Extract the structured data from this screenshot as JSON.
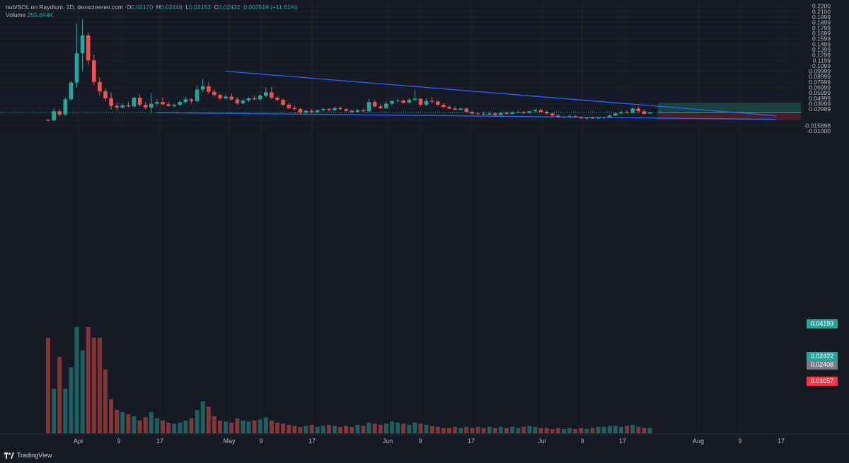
{
  "header": {
    "symbol": "nub/SOL on Raydium, 1D, dexscreener.com",
    "o_label": "O",
    "o": "0.02170",
    "h_label": "H",
    "h": "0.02446",
    "l_label": "L",
    "l": "0.02153",
    "c_label": "C",
    "c": "0.02422",
    "change": "0.002519 (+11.61%)",
    "volume_label": "Volume",
    "volume": "255.844K"
  },
  "price_axis_labels": [
    "0.2200",
    "0.2100",
    "0.1999",
    "0.1899",
    "0.1799",
    "0.1699",
    "0.1599",
    "0.1499",
    "0.1399",
    "0.1299",
    "0.1199",
    "0.1099",
    "0.09999",
    "0.08999",
    "0.07999",
    "0.06999",
    "0.05999",
    "0.04999",
    "0.03999",
    "0.02999",
    "-0.015898",
    "-0.01000"
  ],
  "time_axis_labels": [
    "Apr",
    "9",
    "17",
    "May",
    "9",
    "17",
    "Jun",
    "9",
    "17",
    "Jul",
    "9",
    "17",
    "Aug",
    "9",
    "17"
  ],
  "badges": {
    "target": "0.04193",
    "last": "0.02422",
    "entry": "0.02408",
    "stop": "0.01057"
  },
  "colors": {
    "background": "#161a25",
    "up": "#26a69a",
    "down": "#ef5350",
    "trendline": "#2962ff",
    "target_zone": "#1b4a45",
    "stop_zone": "#4d1f29"
  },
  "footer": {
    "brand": "TradingView"
  },
  "chart_data": {
    "type": "candlestick",
    "title": "nub/SOL on Raydium, 1D",
    "y_range": [
      -0.01,
      0.22
    ],
    "dates_start": "Mar 24",
    "candles": [
      [
        0.0105,
        0.0115,
        0.007,
        0.009
      ],
      [
        0.009,
        0.031,
        0.008,
        0.026
      ],
      [
        0.026,
        0.03,
        0.017,
        0.02
      ],
      [
        0.02,
        0.051,
        0.018,
        0.048
      ],
      [
        0.048,
        0.082,
        0.046,
        0.079
      ],
      [
        0.079,
        0.188,
        0.07,
        0.133
      ],
      [
        0.133,
        0.196,
        0.1,
        0.166
      ],
      [
        0.166,
        0.171,
        0.112,
        0.12
      ],
      [
        0.12,
        0.13,
        0.074,
        0.08
      ],
      [
        0.08,
        0.089,
        0.055,
        0.063
      ],
      [
        0.063,
        0.068,
        0.045,
        0.05
      ],
      [
        0.05,
        0.06,
        0.03,
        0.036
      ],
      [
        0.036,
        0.042,
        0.028,
        0.033
      ],
      [
        0.033,
        0.04,
        0.031,
        0.037
      ],
      [
        0.037,
        0.044,
        0.033,
        0.035
      ],
      [
        0.035,
        0.053,
        0.033,
        0.051
      ],
      [
        0.051,
        0.057,
        0.035,
        0.038
      ],
      [
        0.038,
        0.043,
        0.03,
        0.033
      ],
      [
        0.033,
        0.06,
        0.022,
        0.04
      ],
      [
        0.04,
        0.048,
        0.035,
        0.043
      ],
      [
        0.043,
        0.051,
        0.037,
        0.039
      ],
      [
        0.039,
        0.044,
        0.034,
        0.036
      ],
      [
        0.036,
        0.04,
        0.033,
        0.038
      ],
      [
        0.038,
        0.046,
        0.036,
        0.043
      ],
      [
        0.043,
        0.052,
        0.04,
        0.048
      ],
      [
        0.048,
        0.05,
        0.041,
        0.045
      ],
      [
        0.045,
        0.074,
        0.043,
        0.066
      ],
      [
        0.066,
        0.085,
        0.061,
        0.072
      ],
      [
        0.072,
        0.079,
        0.058,
        0.062
      ],
      [
        0.062,
        0.067,
        0.053,
        0.056
      ],
      [
        0.056,
        0.058,
        0.047,
        0.05
      ],
      [
        0.05,
        0.056,
        0.048,
        0.053
      ],
      [
        0.053,
        0.059,
        0.046,
        0.048
      ],
      [
        0.048,
        0.052,
        0.038,
        0.041
      ],
      [
        0.041,
        0.048,
        0.039,
        0.046
      ],
      [
        0.046,
        0.052,
        0.043,
        0.05
      ],
      [
        0.05,
        0.055,
        0.046,
        0.048
      ],
      [
        0.048,
        0.058,
        0.046,
        0.055
      ],
      [
        0.055,
        0.07,
        0.052,
        0.061
      ],
      [
        0.061,
        0.071,
        0.048,
        0.051
      ],
      [
        0.051,
        0.054,
        0.045,
        0.047
      ],
      [
        0.047,
        0.049,
        0.036,
        0.038
      ],
      [
        0.038,
        0.041,
        0.03,
        0.032
      ],
      [
        0.032,
        0.036,
        0.027,
        0.03
      ],
      [
        0.03,
        0.033,
        0.02,
        0.024
      ],
      [
        0.024,
        0.029,
        0.021,
        0.027
      ],
      [
        0.027,
        0.03,
        0.022,
        0.025
      ],
      [
        0.025,
        0.029,
        0.023,
        0.028
      ],
      [
        0.028,
        0.032,
        0.026,
        0.03
      ],
      [
        0.03,
        0.032,
        0.026,
        0.028
      ],
      [
        0.028,
        0.034,
        0.027,
        0.032
      ],
      [
        0.032,
        0.035,
        0.028,
        0.03
      ],
      [
        0.03,
        0.031,
        0.025,
        0.027
      ],
      [
        0.027,
        0.029,
        0.022,
        0.025
      ],
      [
        0.025,
        0.03,
        0.024,
        0.028
      ],
      [
        0.028,
        0.03,
        0.025,
        0.026
      ],
      [
        0.026,
        0.049,
        0.025,
        0.043
      ],
      [
        0.043,
        0.047,
        0.033,
        0.035
      ],
      [
        0.035,
        0.039,
        0.03,
        0.032
      ],
      [
        0.032,
        0.044,
        0.03,
        0.04
      ],
      [
        0.04,
        0.047,
        0.037,
        0.045
      ],
      [
        0.045,
        0.049,
        0.042,
        0.046
      ],
      [
        0.046,
        0.048,
        0.04,
        0.042
      ],
      [
        0.042,
        0.05,
        0.041,
        0.047
      ],
      [
        0.047,
        0.065,
        0.044,
        0.049
      ],
      [
        0.049,
        0.05,
        0.036,
        0.038
      ],
      [
        0.038,
        0.049,
        0.036,
        0.045
      ],
      [
        0.045,
        0.052,
        0.041,
        0.044
      ],
      [
        0.044,
        0.046,
        0.036,
        0.038
      ],
      [
        0.038,
        0.041,
        0.032,
        0.034
      ],
      [
        0.034,
        0.037,
        0.03,
        0.031
      ],
      [
        0.031,
        0.034,
        0.028,
        0.029
      ],
      [
        0.029,
        0.033,
        0.027,
        0.031
      ],
      [
        0.031,
        0.032,
        0.024,
        0.025
      ],
      [
        0.025,
        0.027,
        0.02,
        0.022
      ],
      [
        0.022,
        0.024,
        0.02,
        0.021
      ],
      [
        0.021,
        0.025,
        0.019,
        0.02
      ],
      [
        0.02,
        0.023,
        0.019,
        0.022
      ],
      [
        0.022,
        0.024,
        0.018,
        0.019
      ],
      [
        0.019,
        0.025,
        0.018,
        0.023
      ],
      [
        0.023,
        0.025,
        0.02,
        0.021
      ],
      [
        0.021,
        0.026,
        0.02,
        0.024
      ],
      [
        0.024,
        0.027,
        0.022,
        0.025
      ],
      [
        0.025,
        0.027,
        0.021,
        0.023
      ],
      [
        0.023,
        0.027,
        0.022,
        0.026
      ],
      [
        0.026,
        0.03,
        0.024,
        0.028
      ],
      [
        0.028,
        0.031,
        0.024,
        0.025
      ],
      [
        0.025,
        0.027,
        0.02,
        0.022
      ],
      [
        0.022,
        0.023,
        0.016,
        0.018
      ],
      [
        0.018,
        0.02,
        0.014,
        0.015
      ],
      [
        0.015,
        0.017,
        0.013,
        0.016
      ],
      [
        0.016,
        0.019,
        0.014,
        0.017
      ],
      [
        0.017,
        0.019,
        0.014,
        0.015
      ],
      [
        0.015,
        0.017,
        0.012,
        0.013
      ],
      [
        0.013,
        0.015,
        0.011,
        0.014
      ],
      [
        0.014,
        0.016,
        0.012,
        0.013
      ],
      [
        0.013,
        0.016,
        0.012,
        0.014
      ],
      [
        0.014,
        0.016,
        0.012,
        0.015
      ],
      [
        0.015,
        0.02,
        0.014,
        0.018
      ],
      [
        0.018,
        0.024,
        0.017,
        0.022
      ],
      [
        0.022,
        0.027,
        0.021,
        0.024
      ],
      [
        0.024,
        0.028,
        0.022,
        0.023
      ],
      [
        0.023,
        0.034,
        0.022,
        0.031
      ],
      [
        0.031,
        0.035,
        0.024,
        0.026
      ],
      [
        0.026,
        0.03,
        0.023,
        0.021
      ],
      [
        0.0217,
        0.0245,
        0.0215,
        0.0242
      ]
    ],
    "volumes": [
      0.9,
      0.42,
      0.72,
      0.42,
      0.62,
      1.0,
      0.78,
      1.0,
      0.9,
      0.9,
      0.6,
      0.32,
      0.22,
      0.2,
      0.18,
      0.16,
      0.12,
      0.15,
      0.2,
      0.14,
      0.12,
      0.1,
      0.09,
      0.1,
      0.12,
      0.14,
      0.22,
      0.3,
      0.25,
      0.16,
      0.12,
      0.11,
      0.1,
      0.14,
      0.12,
      0.11,
      0.12,
      0.13,
      0.15,
      0.12,
      0.1,
      0.09,
      0.08,
      0.07,
      0.06,
      0.07,
      0.08,
      0.06,
      0.07,
      0.08,
      0.07,
      0.06,
      0.07,
      0.06,
      0.08,
      0.07,
      0.1,
      0.09,
      0.08,
      0.09,
      0.11,
      0.1,
      0.09,
      0.08,
      0.1,
      0.09,
      0.08,
      0.07,
      0.06,
      0.05,
      0.05,
      0.06,
      0.05,
      0.06,
      0.05,
      0.06,
      0.05,
      0.06,
      0.05,
      0.06,
      0.05,
      0.06,
      0.05,
      0.06,
      0.07,
      0.06,
      0.05,
      0.05,
      0.04,
      0.05,
      0.04,
      0.05,
      0.04,
      0.05,
      0.04,
      0.05,
      0.06,
      0.06,
      0.07,
      0.07,
      0.06,
      0.07,
      0.08,
      0.06,
      0.05,
      0.05
    ],
    "trendlines": [
      {
        "from": {
          "date": "Apr 24",
          "price": 0.0999
        },
        "to": {
          "date": "Jul 29",
          "price": 0.0177
        }
      },
      {
        "from": {
          "date": "Apr 12",
          "price": 0.0235
        },
        "to": {
          "date": "Jul 29",
          "price": 0.0112
        }
      }
    ],
    "position": {
      "entry": 0.02408,
      "target": 0.04193,
      "stop": 0.01057
    }
  }
}
